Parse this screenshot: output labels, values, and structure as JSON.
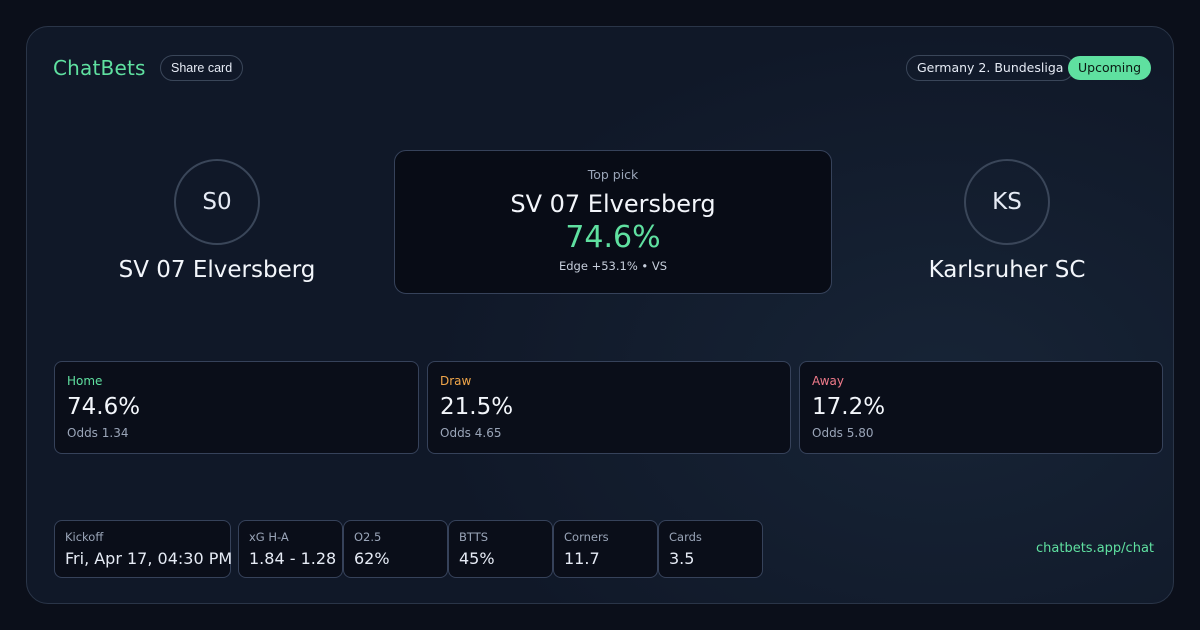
{
  "brand": {
    "name": "ChatBets",
    "share_label": "Share card"
  },
  "header": {
    "league": "Germany 2. Bundesliga",
    "status": "Upcoming"
  },
  "home_team": {
    "initials": "S0",
    "name": "SV 07 Elversberg"
  },
  "away_team": {
    "initials": "KS",
    "name": "Karlsruher SC"
  },
  "top_pick": {
    "label": "Top pick",
    "team": "SV 07 Elversberg",
    "probability": "74.6%",
    "edge": "Edge +53.1% • VS"
  },
  "probabilities": [
    {
      "label": "Home",
      "value": "74.6%",
      "odds": "Odds 1.34",
      "color": "#5fe0a0"
    },
    {
      "label": "Draw",
      "value": "21.5%",
      "odds": "Odds 4.65",
      "color": "#f0a64a"
    },
    {
      "label": "Away",
      "value": "17.2%",
      "odds": "Odds 5.80",
      "color": "#f07a8a"
    }
  ],
  "stats": [
    {
      "label": "Kickoff",
      "value": "Fri, Apr 17, 04:30 PM"
    },
    {
      "label": "xG H-A",
      "value": "1.84 - 1.28"
    },
    {
      "label": "O2.5",
      "value": "62%"
    },
    {
      "label": "BTTS",
      "value": "45%"
    },
    {
      "label": "Corners",
      "value": "11.7"
    },
    {
      "label": "Cards",
      "value": "3.5"
    }
  ],
  "footer": {
    "link": "chatbets.app/chat"
  },
  "colors": {
    "accent": "#5fe0a0",
    "background": "#101828",
    "border": "#36425a"
  }
}
